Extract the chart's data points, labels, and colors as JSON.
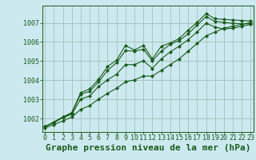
{
  "title": "Graphe pression niveau de la mer (hPa)",
  "bg_color": "#cce9f0",
  "grid_color": "#99bbaa",
  "line_color": "#1a5c1a",
  "marker_color": "#1a5c1a",
  "xlim": [
    -0.3,
    23.3
  ],
  "ylim": [
    1001.3,
    1007.9
  ],
  "xticks": [
    0,
    1,
    2,
    3,
    4,
    5,
    6,
    7,
    8,
    9,
    10,
    11,
    12,
    13,
    14,
    15,
    16,
    17,
    18,
    19,
    20,
    21,
    22,
    23
  ],
  "yticks": [
    1002,
    1003,
    1004,
    1005,
    1006,
    1007
  ],
  "series": [
    [
      1001.58,
      1001.82,
      1002.08,
      1002.32,
      1003.35,
      1003.55,
      1004.05,
      1004.72,
      1005.05,
      1005.82,
      1005.58,
      1005.82,
      1005.12,
      1005.78,
      1005.95,
      1006.18,
      1006.62,
      1007.02,
      1007.48,
      1007.22,
      1007.18,
      1007.15,
      1007.12,
      1007.1
    ],
    [
      1001.58,
      1001.82,
      1002.08,
      1002.28,
      1003.28,
      1003.42,
      1003.92,
      1004.52,
      1004.92,
      1005.55,
      1005.52,
      1005.62,
      1005.02,
      1005.52,
      1005.88,
      1006.08,
      1006.42,
      1006.88,
      1007.32,
      1007.08,
      1007.02,
      1006.98,
      1006.95,
      1006.95
    ],
    [
      1001.58,
      1001.78,
      1002.05,
      1002.22,
      1003.02,
      1003.18,
      1003.68,
      1004.02,
      1004.32,
      1004.82,
      1004.82,
      1005.02,
      1004.62,
      1005.12,
      1005.48,
      1005.78,
      1006.12,
      1006.52,
      1006.98,
      1006.78,
      1006.68,
      1006.72,
      1006.82,
      1006.92
    ],
    [
      1001.52,
      1001.68,
      1001.88,
      1002.08,
      1002.48,
      1002.68,
      1003.02,
      1003.32,
      1003.58,
      1003.92,
      1004.02,
      1004.22,
      1004.22,
      1004.52,
      1004.82,
      1005.12,
      1005.52,
      1005.92,
      1006.32,
      1006.52,
      1006.72,
      1006.82,
      1006.92,
      1007.02
    ]
  ],
  "title_fontsize": 8,
  "tick_fontsize": 6,
  "title_color": "#1a5c1a",
  "tick_color": "#1a5c1a",
  "axis_color": "#1a5c1a",
  "fig_width": 3.2,
  "fig_height": 2.0,
  "dpi": 100
}
